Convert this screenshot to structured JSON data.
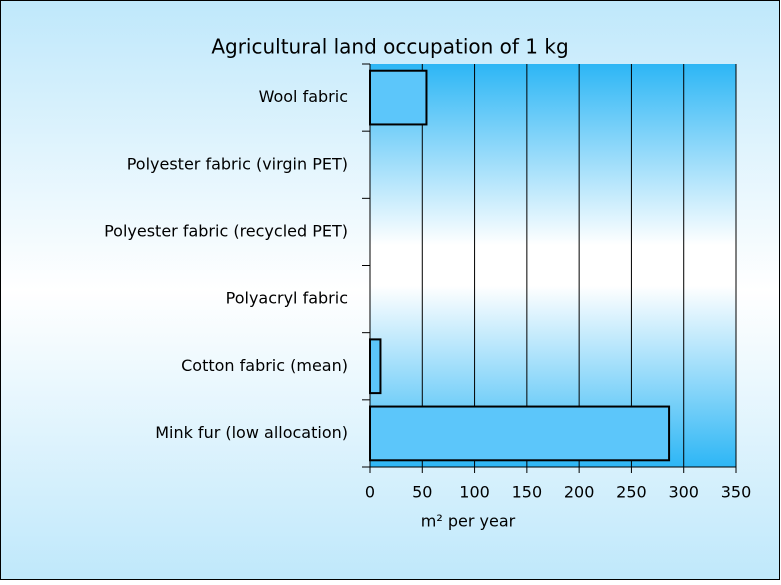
{
  "chart_data": {
    "type": "barh",
    "title": "Agricultural land occupation of 1 kg",
    "categories": [
      "Wool fabric",
      "Polyester fabric (virgin PET)",
      "Polyester fabric (recycled PET)",
      "Polyacryl fabric",
      "Cotton fabric (mean)",
      "Mink fur (low allocation)"
    ],
    "values": [
      54,
      0,
      0,
      0,
      10,
      286
    ],
    "color": "#5cc6fa",
    "xlim": [
      0,
      350
    ],
    "xticks": [
      0,
      50,
      100,
      150,
      200,
      250,
      300,
      350
    ],
    "xlabel": "m² per year",
    "grid": true
  }
}
